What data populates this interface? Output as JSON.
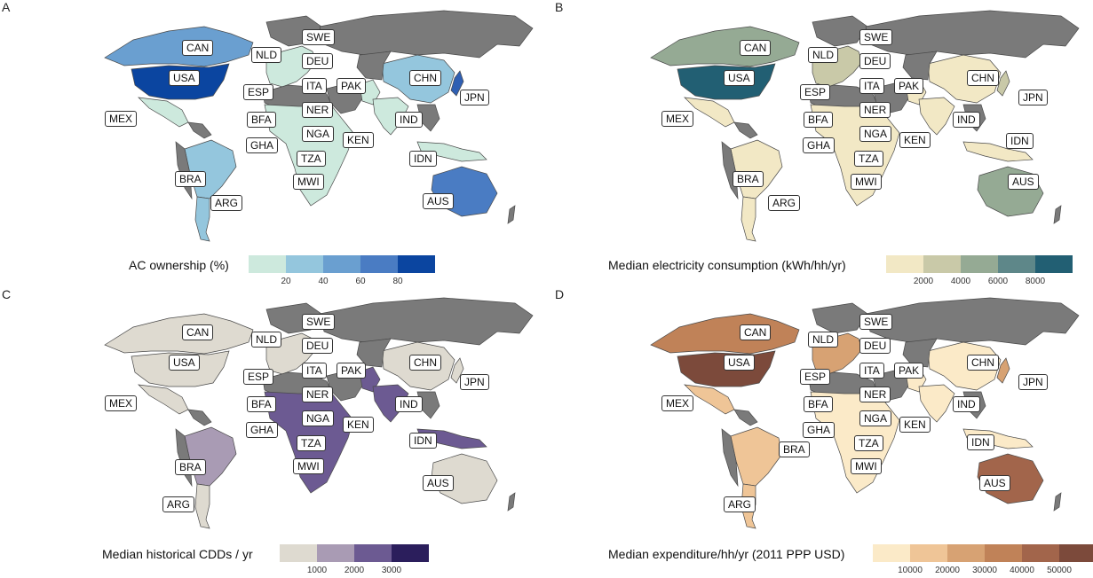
{
  "panels": [
    {
      "letter": "A",
      "legend_title": "AC ownership (%)",
      "legend_ticks": [
        "20",
        "40",
        "60",
        "80"
      ],
      "scale": [
        "#cde9dd",
        "#94c6dd",
        "#6a9fd0",
        "#4a7cc3",
        "#0b45a0"
      ],
      "colors": {
        "CAN": "#6a9fd0",
        "USA": "#0b45a0",
        "MEX": "#cde9dd",
        "BRA": "#94c6dd",
        "ARG": "#94c6dd",
        "EUR": "#cde9dd",
        "AFR": "#cde9dd",
        "PAK": "#cde9dd",
        "IND": "#cde9dd",
        "CHN": "#94c6dd",
        "JPN": "#2f5fb3",
        "IDN": "#cde9dd",
        "AUS": "#4a7cc3"
      }
    },
    {
      "letter": "B",
      "legend_title": "Median electricity consumption (kWh/hh/yr)",
      "legend_ticks": [
        "2000",
        "4000",
        "6000",
        "8000"
      ],
      "scale": [
        "#f2e8c5",
        "#c9c9a8",
        "#95aa94",
        "#5e8789",
        "#225f73"
      ],
      "colors": {
        "CAN": "#95aa94",
        "USA": "#225f73",
        "MEX": "#f2e8c5",
        "BRA": "#f2e8c5",
        "ARG": "#f2e8c5",
        "EUR": "#c9c9a8",
        "AFR": "#f2e8c5",
        "PAK": "#f2e8c5",
        "IND": "#f2e8c5",
        "CHN": "#f2e8c5",
        "JPN": "#c9c9a8",
        "IDN": "#f2e8c5",
        "AUS": "#95aa94"
      }
    },
    {
      "letter": "C",
      "legend_title": "Median historical CDDs / yr",
      "legend_ticks": [
        "1000",
        "2000",
        "3000"
      ],
      "scale": [
        "#dedad0",
        "#a99bb4",
        "#6c5a92",
        "#2b1e5c"
      ],
      "colors": {
        "CAN": "#dedad0",
        "USA": "#dedad0",
        "MEX": "#dedad0",
        "BRA": "#a99bb4",
        "ARG": "#dedad0",
        "EUR": "#dedad0",
        "AFR": "#6c5a92",
        "PAK": "#6c5a92",
        "IND": "#6c5a92",
        "CHN": "#dedad0",
        "JPN": "#dedad0",
        "IDN": "#6c5a92",
        "AUS": "#dedad0"
      }
    },
    {
      "letter": "D",
      "legend_title": "Median expenditure/hh/yr (2011 PPP USD)",
      "legend_ticks": [
        "10000",
        "20000",
        "30000",
        "40000",
        "50000"
      ],
      "scale": [
        "#fbeac8",
        "#efc597",
        "#d7a273",
        "#c08258",
        "#a2654b",
        "#7c4a3b"
      ],
      "colors": {
        "CAN": "#c08258",
        "USA": "#7c4a3b",
        "MEX": "#efc597",
        "BRA": "#efc597",
        "ARG": "#efc597",
        "EUR": "#d7a273",
        "AFR": "#fbeac8",
        "PAK": "#fbeac8",
        "IND": "#fbeac8",
        "CHN": "#fbeac8",
        "JPN": "#d7a273",
        "IDN": "#fbeac8",
        "AUS": "#a2654b"
      }
    }
  ]
}
